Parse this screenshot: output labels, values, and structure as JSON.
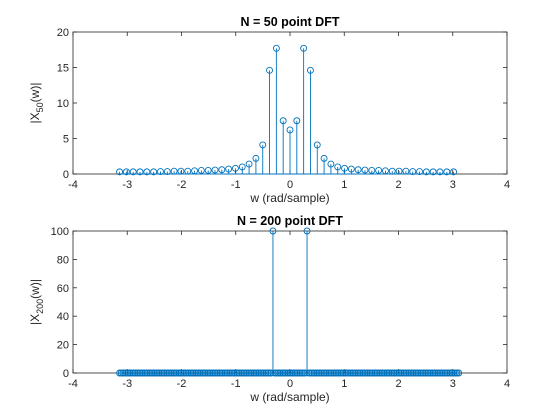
{
  "chart_data": [
    {
      "type": "stem",
      "title": "N = 50 point DFT",
      "xlabel": "w (rad/sample)",
      "ylabel_base": "|X",
      "ylabel_sub": "50",
      "ylabel_tail": "(w)|",
      "xlim": [
        -4,
        4
      ],
      "ylim": [
        0,
        20
      ],
      "xticks": [
        -4,
        -3,
        -2,
        -1,
        0,
        1,
        2,
        3,
        4
      ],
      "yticks": [
        0,
        5,
        10,
        15,
        20
      ],
      "grid": false,
      "color": "#0072BD",
      "marker": "circle",
      "x": [
        -3.1416,
        -3.0159,
        -2.8903,
        -2.7646,
        -2.6389,
        -2.5133,
        -2.3876,
        -2.2619,
        -2.1363,
        -2.0106,
        -1.885,
        -1.7593,
        -1.6336,
        -1.508,
        -1.3823,
        -1.2566,
        -1.131,
        -1.0053,
        -0.8796,
        -0.754,
        -0.6283,
        -0.5027,
        -0.377,
        -0.2513,
        -0.1257,
        0.0,
        0.1257,
        0.2513,
        0.377,
        0.5027,
        0.6283,
        0.754,
        0.8796,
        1.0053,
        1.131,
        1.2566,
        1.3823,
        1.508,
        1.6336,
        1.7593,
        1.885,
        2.0106,
        2.1363,
        2.2619,
        2.3876,
        2.5133,
        2.6389,
        2.7646,
        2.8903,
        3.0159
      ],
      "y": [
        0.3,
        0.3,
        0.3,
        0.3,
        0.3,
        0.3,
        0.35,
        0.35,
        0.4,
        0.4,
        0.4,
        0.45,
        0.5,
        0.5,
        0.55,
        0.6,
        0.7,
        0.8,
        1.0,
        1.4,
        2.2,
        4.1,
        14.6,
        17.7,
        7.5,
        6.2,
        7.5,
        17.7,
        14.6,
        4.1,
        2.2,
        1.4,
        1.0,
        0.8,
        0.7,
        0.6,
        0.55,
        0.5,
        0.5,
        0.45,
        0.4,
        0.4,
        0.4,
        0.35,
        0.35,
        0.3,
        0.3,
        0.3,
        0.3,
        0.3
      ]
    },
    {
      "type": "stem",
      "title": "N = 200 point DFT",
      "xlabel": "w (rad/sample)",
      "ylabel_base": "|X",
      "ylabel_sub": "200",
      "ylabel_tail": "(w)|",
      "xlim": [
        -4,
        4
      ],
      "ylim": [
        0,
        100
      ],
      "xticks": [
        -4,
        -3,
        -2,
        -1,
        0,
        1,
        2,
        3,
        4
      ],
      "yticks": [
        0,
        20,
        40,
        60,
        80,
        100
      ],
      "grid": false,
      "color": "#0072BD",
      "marker": "circle",
      "n_points": 200,
      "x_start": -3.1416,
      "x_step": 0.031416,
      "peaks": [
        {
          "x": -0.3142,
          "y": 100
        },
        {
          "x": 0.3142,
          "y": 100
        }
      ],
      "other_value": 0
    }
  ]
}
